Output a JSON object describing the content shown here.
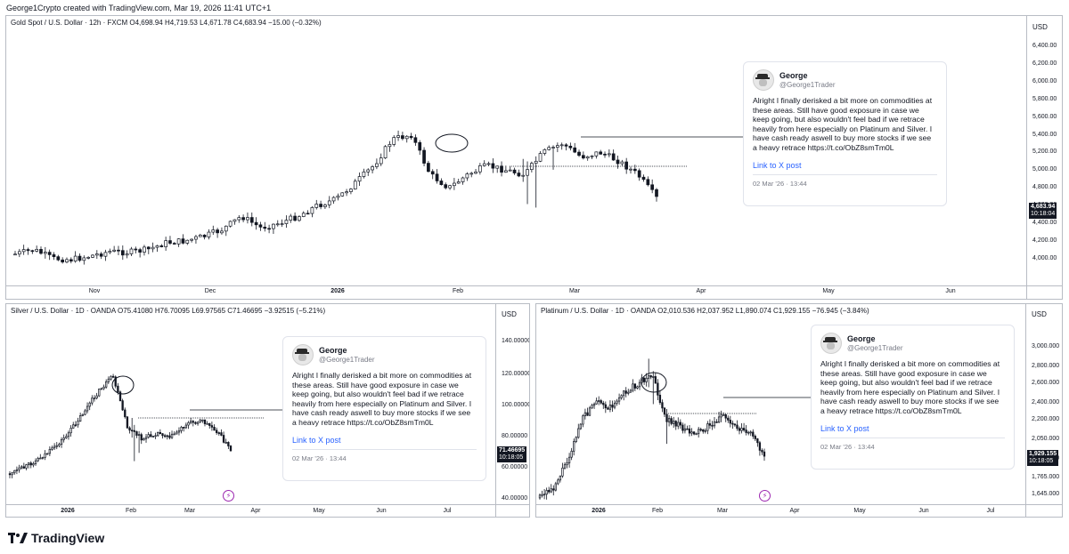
{
  "header": {
    "text": "George1Crypto created with TradingView.com, Mar 19, 2026 11:41 UTC+1"
  },
  "footer": {
    "brand": "TradingView"
  },
  "colors": {
    "candle": "#131722",
    "axis_label_bg": "#131722",
    "link": "#2962ff",
    "event_icon": "#9c27b0"
  },
  "tweet": {
    "name": "George",
    "handle": "@George1Trader",
    "text": "Alright I finally derisked a bit more on commodities at these areas. Still have good exposure in case we keep going, but also wouldn't feel bad if we retrace heavily from here especially on Platinum and Silver. I have cash ready aswell to buy more stocks if we see a heavy retrace https://t.co/ObZ8smTm0L",
    "link": "Link to X post",
    "date": "02 Mar '26 · 13:44"
  },
  "charts": {
    "gold": {
      "legend": "Gold Spot / U.S. Dollar · 12h · FXCM  O4,698.94  H4,719.53  L4,671.78  C4,683.94  −15.00 (−0.32%)",
      "unit": "USD",
      "price_ticks": [
        "6,400.00",
        "6,200.00",
        "6,000.00",
        "5,800.00",
        "5,600.00",
        "5,400.00",
        "5,200.00",
        "5,000.00",
        "4,800.00",
        "4,600.00",
        "4,400.00",
        "4,200.00",
        "4,000.00"
      ],
      "x_ticks": [
        {
          "label": "Nov",
          "bold": false
        },
        {
          "label": "Dec",
          "bold": false
        },
        {
          "label": "2026",
          "bold": true
        },
        {
          "label": "Feb",
          "bold": false
        },
        {
          "label": "Mar",
          "bold": false
        },
        {
          "label": "Apr",
          "bold": false
        },
        {
          "label": "May",
          "bold": false
        },
        {
          "label": "Jun",
          "bold": false
        }
      ],
      "last_price": "4,683.94",
      "countdown": "10:18:04"
    },
    "silver": {
      "legend": "Silver / U.S. Dollar · 1D · OANDA  O75.41080  H76.70095  L69.97565  C71.46695  −3.92515 (−5.21%)",
      "unit": "USD",
      "price_ticks": [
        "140.00000",
        "120.00000",
        "100.00000",
        "80.00000",
        "60.00000",
        "40.00000"
      ],
      "x_ticks": [
        {
          "label": "2026",
          "bold": true
        },
        {
          "label": "Feb",
          "bold": false
        },
        {
          "label": "Mar",
          "bold": false
        },
        {
          "label": "Apr",
          "bold": false
        },
        {
          "label": "May",
          "bold": false
        },
        {
          "label": "Jun",
          "bold": false
        },
        {
          "label": "Jul",
          "bold": false
        }
      ],
      "last_price": "71.46695",
      "countdown": "10:18:05"
    },
    "platinum": {
      "legend": "Platinum / U.S. Dollar · 1D · OANDA  O2,010.536  H2,037.952  L1,890.074  C1,929.155  −76.945 (−3.84%)",
      "unit": "USD",
      "price_ticks": [
        "3,000.000",
        "2,800.000",
        "2,600.000",
        "2,400.000",
        "2,200.000",
        "2,050.000",
        "1,900.000",
        "1,765.000",
        "1,645.000"
      ],
      "x_ticks": [
        {
          "label": "2026",
          "bold": true
        },
        {
          "label": "Feb",
          "bold": false
        },
        {
          "label": "Mar",
          "bold": false
        },
        {
          "label": "Apr",
          "bold": false
        },
        {
          "label": "May",
          "bold": false
        },
        {
          "label": "Jun",
          "bold": false
        },
        {
          "label": "Jul",
          "bold": false
        }
      ],
      "last_price": "1,929.155",
      "countdown": "10:18:05"
    }
  },
  "chart_data": [
    {
      "type": "candlestick",
      "title": "Gold Spot / U.S. Dollar · 12h · FXCM",
      "ylabel": "USD",
      "ylim": [
        3900,
        6500
      ],
      "y_ticks": [
        4000,
        4200,
        4400,
        4600,
        4800,
        5000,
        5200,
        5400,
        5600,
        5800,
        6000,
        6200,
        6400
      ],
      "x_ticks": [
        "Nov",
        "Dec",
        "2026",
        "Feb",
        "Mar",
        "Apr",
        "May",
        "Jun"
      ],
      "x": [
        "Oct 20",
        "Oct 25",
        "Oct 30",
        "Nov 5",
        "Nov 10",
        "Nov 15",
        "Nov 20",
        "Nov 25",
        "Dec 1",
        "Dec 5",
        "Dec 10",
        "Dec 15",
        "Dec 20",
        "Dec 26",
        "Jan 1",
        "Jan 5",
        "Jan 10",
        "Jan 15",
        "Jan 20",
        "Jan 24",
        "Jan 27",
        "Jan 29",
        "Jan 30",
        "Feb 2",
        "Feb 5",
        "Feb 10",
        "Feb 15",
        "Feb 20",
        "Feb 25",
        "Mar 2",
        "Mar 5",
        "Mar 9",
        "Mar 12",
        "Mar 16",
        "Mar 18"
      ],
      "series": [
        {
          "values": [
            4050,
            4100,
            4000,
            3990,
            4030,
            4080,
            4070,
            4100,
            4180,
            4200,
            4250,
            4330,
            4480,
            4350,
            4400,
            4480,
            4600,
            4670,
            4850,
            5050,
            5350,
            5400,
            4950,
            4800,
            4950,
            5050,
            5000,
            4950,
            5200,
            5300,
            5150,
            5200,
            5100,
            4950,
            4684
          ]
        }
      ],
      "last_value": 4683.94,
      "annotation": "horizontal line at 5,120.00 from Feb to Mar"
    },
    {
      "type": "candlestick",
      "title": "Silver / U.S. Dollar · 1D · OANDA",
      "ylabel": "USD",
      "ylim": [
        38,
        150
      ],
      "y_ticks": [
        40,
        60,
        80,
        100,
        120,
        140
      ],
      "x_ticks": [
        "2026",
        "Feb",
        "Mar",
        "Apr",
        "May",
        "Jun",
        "Jul"
      ],
      "x": [
        "Dec 1",
        "Dec 10",
        "Dec 20",
        "Jan 1",
        "Jan 10",
        "Jan 18",
        "Jan 24",
        "Jan 28",
        "Jan 30",
        "Feb 2",
        "Feb 10",
        "Feb 20",
        "Mar 1",
        "Mar 5",
        "Mar 12",
        "Mar 18"
      ],
      "series": [
        {
          "values": [
            56,
            60,
            66,
            72,
            82,
            95,
            108,
            118,
            85,
            78,
            82,
            80,
            88,
            90,
            84,
            71
          ]
        }
      ],
      "last_value": 71.46695
    },
    {
      "type": "candlestick",
      "title": "Platinum / U.S. Dollar · 1D · OANDA",
      "ylabel": "USD",
      "ylim": [
        1580,
        3150
      ],
      "y_ticks": [
        1645,
        1765,
        1900,
        2050,
        2200,
        2400,
        2600,
        2800,
        3000
      ],
      "x_ticks": [
        "2026",
        "Feb",
        "Mar",
        "Apr",
        "May",
        "Jun",
        "Jul"
      ],
      "x": [
        "Nov 20",
        "Dec 1",
        "Dec 10",
        "Dec 20",
        "Dec 26",
        "Jan 5",
        "Jan 15",
        "Jan 24",
        "Jan 28",
        "Jan 30",
        "Feb 2",
        "Feb 10",
        "Feb 20",
        "Mar 1",
        "Mar 5",
        "Mar 12",
        "Mar 18"
      ],
      "series": [
        {
          "values": [
            1620,
            1700,
            1900,
            2200,
            2400,
            2350,
            2500,
            2600,
            2700,
            2200,
            2150,
            2100,
            2150,
            2250,
            2150,
            2100,
            1929
          ]
        }
      ],
      "last_value": 1929.155
    }
  ]
}
